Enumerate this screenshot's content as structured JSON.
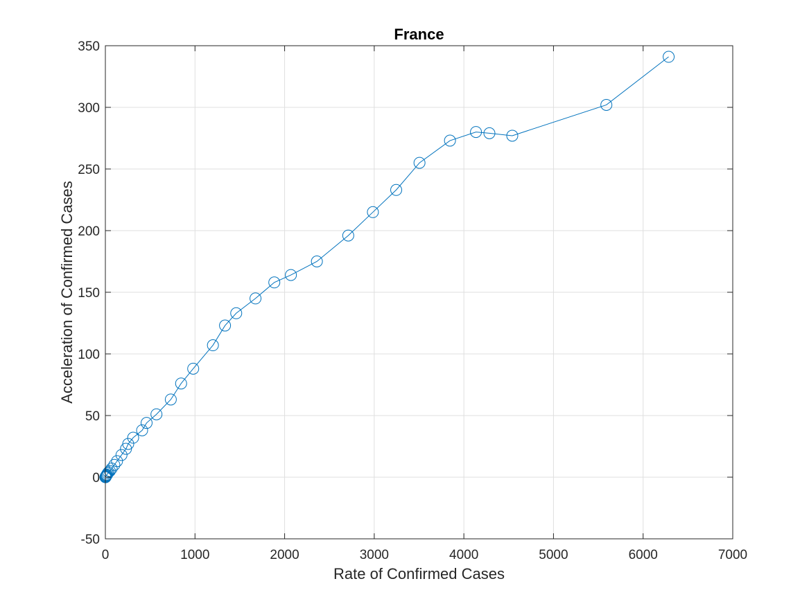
{
  "chart_data": {
    "type": "line",
    "title": "France",
    "xlabel": "Rate of Confirmed Cases",
    "ylabel": "Acceleration of Confirmed Cases",
    "xlim": [
      0,
      7000
    ],
    "ylim": [
      -50,
      350
    ],
    "xticks": [
      0,
      1000,
      2000,
      3000,
      4000,
      5000,
      6000,
      7000
    ],
    "yticks": [
      -50,
      0,
      50,
      100,
      150,
      200,
      250,
      300,
      350
    ],
    "xtick_labels": [
      "0",
      "1000",
      "2000",
      "3000",
      "4000",
      "5000",
      "6000",
      "7000"
    ],
    "ytick_labels": [
      "-50",
      "0",
      "50",
      "100",
      "150",
      "200",
      "250",
      "300",
      "350"
    ],
    "grid": true,
    "marker": "circle",
    "line_color": "#0072BD",
    "series": [
      {
        "x": [
          0,
          2,
          5,
          8,
          12,
          18,
          25,
          35,
          50,
          70,
          100,
          130,
          180,
          230,
          255,
          310,
          410,
          460,
          570,
          730,
          845,
          980,
          1200,
          1335,
          1460,
          1675,
          1885,
          2070,
          2360,
          2710,
          2985,
          3245,
          3505,
          3845,
          4135,
          4285,
          4540,
          5590,
          6285
        ],
        "y": [
          0,
          0,
          0.5,
          1,
          1.5,
          2,
          3,
          4,
          5,
          7,
          10,
          13,
          18,
          23,
          27,
          32,
          38,
          44,
          51,
          63,
          76,
          88,
          107,
          123,
          133,
          145,
          158,
          164,
          175,
          196,
          215,
          233,
          255,
          273,
          280,
          279,
          277,
          302,
          341
        ]
      }
    ]
  }
}
